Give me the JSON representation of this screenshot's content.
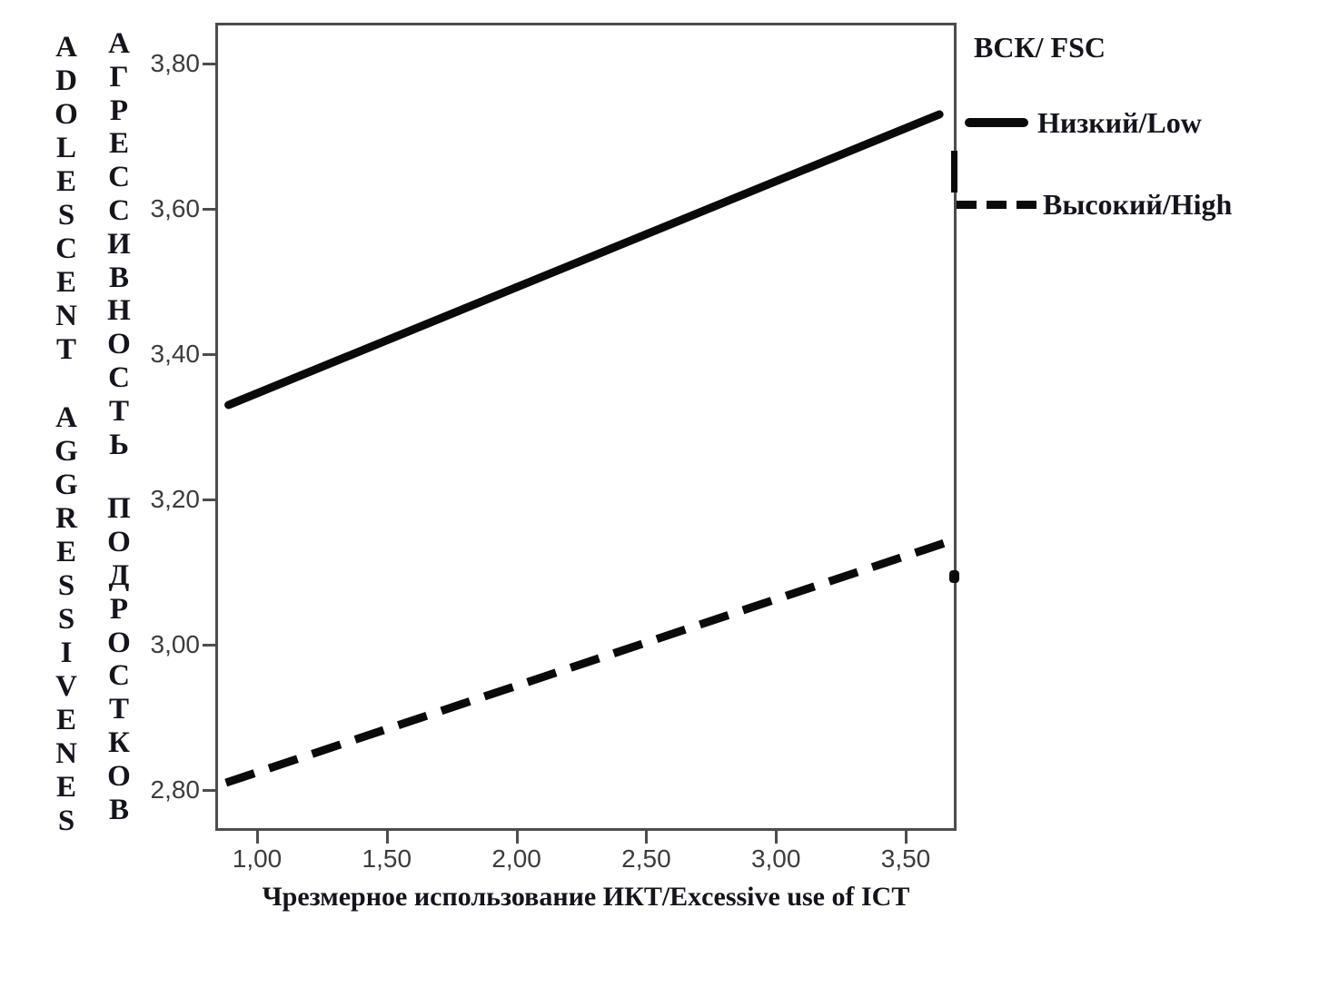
{
  "figure": {
    "y_axis_vertical_label_english": "ADOLESCENT AGGRESSIVENES",
    "y_axis_vertical_label_russian": "АГРЕССИВНОСТЬ ПОДРОСТКОВ",
    "x_axis_label": "Чрезмерное использование ИКТ/Excessive use of ICT",
    "legend": {
      "title": "ВСК/ FSC",
      "entries": [
        {
          "label": "Низкий/Low",
          "style": "solid"
        },
        {
          "label": "Высокий/High",
          "style": "dashed"
        }
      ]
    }
  },
  "colors": {
    "line": "#0a0a0a",
    "axis_border": "#4d4d4d",
    "tick_label": "#3c3c3c",
    "text": "#14141d",
    "background": "#ffffff"
  },
  "chart_data": {
    "type": "line",
    "title": "",
    "xlabel": "Чрезмерное использование ИКТ/Excessive use of ICT",
    "ylabel": "АГРЕССИВНОСТЬ ПОДРОСТКОВ / ADOLESCENT AGGRESSIVENES",
    "legend_title": "ВСК/ FSC",
    "legend_position": "outside-top-right",
    "grid": false,
    "x_ticks": [
      1.0,
      1.5,
      2.0,
      2.5,
      3.0,
      3.5
    ],
    "x_tick_labels": [
      "1,00",
      "1,50",
      "2,00",
      "2,50",
      "3,00",
      "3,50"
    ],
    "y_ticks": [
      3.8,
      3.6,
      3.4,
      3.2,
      3.0,
      2.8
    ],
    "y_tick_labels": [
      "3,80",
      "3,60",
      "3,40",
      "3,20",
      "3,00",
      "2,80"
    ],
    "xlim": [
      0.84,
      3.69
    ],
    "ylim": [
      2.74,
      3.86
    ],
    "series": [
      {
        "name": "Низкий/Low",
        "style": "solid",
        "color": "#0a0a0a",
        "points": [
          [
            0.89,
            3.33
          ],
          [
            3.63,
            3.73
          ]
        ]
      },
      {
        "name": "Высокий/High",
        "style": "dashed",
        "color": "#0a0a0a",
        "points": [
          [
            0.88,
            2.81
          ],
          [
            3.65,
            3.14
          ]
        ]
      }
    ]
  }
}
